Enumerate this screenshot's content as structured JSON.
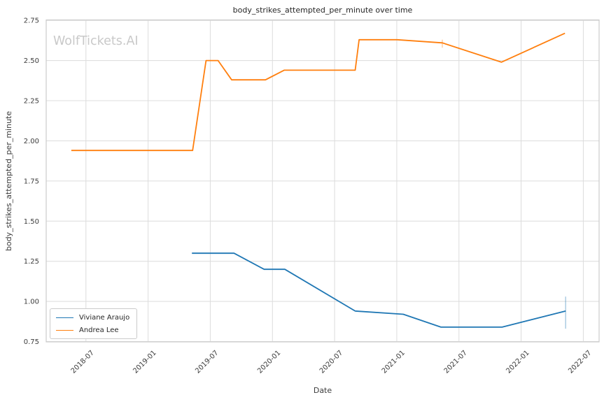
{
  "watermark": "WolfTickets.AI",
  "chart_data": {
    "type": "line",
    "title": "body_strikes_attempted_per_minute over time",
    "xlabel": "Date",
    "ylabel": "body_strikes_attempted_per_minute",
    "x_ticks": [
      "2018-07",
      "2019-01",
      "2019-07",
      "2020-01",
      "2020-07",
      "2021-01",
      "2021-07",
      "2022-01",
      "2022-07"
    ],
    "y_ticks": [
      "0.75",
      "1.00",
      "1.25",
      "1.50",
      "1.75",
      "2.00",
      "2.25",
      "2.50",
      "2.75"
    ],
    "xlim": [
      "2018-03-06",
      "2022-08-17"
    ],
    "ylim": [
      0.748,
      2.753
    ],
    "grid": true,
    "legend_position": "lower left",
    "series": [
      {
        "name": "Viviane Araujo",
        "color": "#1f77b4",
        "points": [
          {
            "date": "2019-05-08",
            "value": 1.3
          },
          {
            "date": "2019-09-10",
            "value": 1.3
          },
          {
            "date": "2019-12-07",
            "value": 1.2
          },
          {
            "date": "2020-02-07",
            "value": 1.2
          },
          {
            "date": "2020-08-31",
            "value": 0.94
          },
          {
            "date": "2021-01-20",
            "value": 0.92
          },
          {
            "date": "2021-05-09",
            "value": 0.84
          },
          {
            "date": "2021-11-06",
            "value": 0.84
          },
          {
            "date": "2022-05-10",
            "value": 0.94
          }
        ]
      },
      {
        "name": "Andrea Lee",
        "color": "#ff7f0e",
        "points": [
          {
            "date": "2018-05-19",
            "value": 1.94
          },
          {
            "date": "2019-05-10",
            "value": 1.94
          },
          {
            "date": "2019-06-19",
            "value": 2.5
          },
          {
            "date": "2019-07-24",
            "value": 2.5
          },
          {
            "date": "2019-09-03",
            "value": 2.38
          },
          {
            "date": "2019-12-11",
            "value": 2.38
          },
          {
            "date": "2020-02-05",
            "value": 2.44
          },
          {
            "date": "2020-08-31",
            "value": 2.44
          },
          {
            "date": "2020-09-12",
            "value": 2.63
          },
          {
            "date": "2021-01-02",
            "value": 2.63
          },
          {
            "date": "2021-05-13",
            "value": 2.61
          },
          {
            "date": "2021-11-04",
            "value": 2.49
          },
          {
            "date": "2022-05-08",
            "value": 2.67
          }
        ]
      }
    ],
    "faint_marks": [
      {
        "series": "Andrea Lee",
        "date": "2021-05-13",
        "value_range": [
          2.58,
          2.63
        ]
      },
      {
        "series": "Viviane Araujo",
        "date": "2022-05-10",
        "value_range": [
          0.83,
          1.03
        ]
      }
    ]
  }
}
